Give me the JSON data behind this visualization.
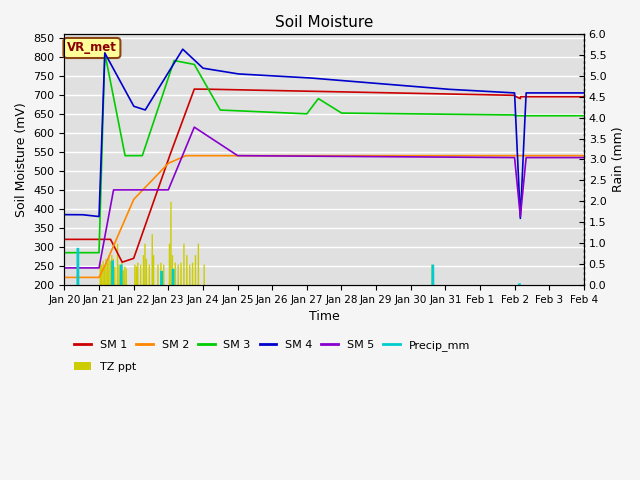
{
  "title": "Soil Moisture",
  "xlabel": "Time",
  "ylabel_left": "Soil Moisture (mV)",
  "ylabel_right": "Rain (mm)",
  "ylim_left": [
    200,
    860
  ],
  "ylim_right": [
    0.0,
    6.0
  ],
  "yticks_left": [
    200,
    250,
    300,
    350,
    400,
    450,
    500,
    550,
    600,
    650,
    700,
    750,
    800,
    850
  ],
  "yticks_right": [
    0.0,
    0.5,
    1.0,
    1.5,
    2.0,
    2.5,
    3.0,
    3.5,
    4.0,
    4.5,
    5.0,
    5.5,
    6.0
  ],
  "background_color": "#e0e0e0",
  "annotation_text": "VR_met",
  "annotation_color": "#8B0000",
  "annotation_bg": "#ffff99",
  "annotation_border": "#8B4513",
  "sm1_color": "#cc0000",
  "sm2_color": "#ff8800",
  "sm3_color": "#00cc00",
  "sm4_color": "#0000cc",
  "sm5_color": "#8800cc",
  "precip_color": "#00cccc",
  "tz_color": "#cccc00",
  "legend_row1": [
    "SM 1",
    "SM 2",
    "SM 3",
    "SM 4",
    "SM 5",
    "Precip_mm"
  ],
  "legend_row2": [
    "TZ ppt"
  ]
}
